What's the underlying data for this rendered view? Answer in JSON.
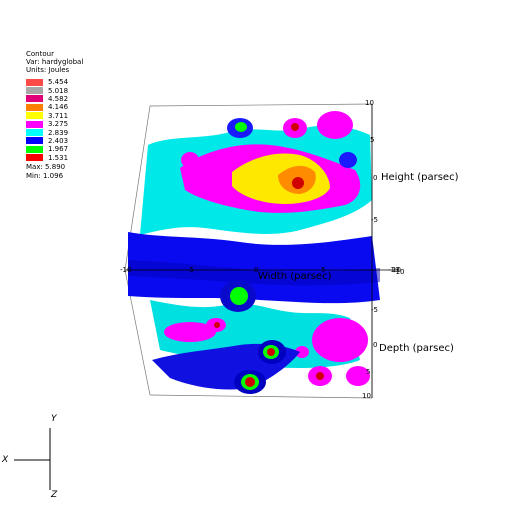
{
  "legend": {
    "title": "Contour",
    "var_label": "Var: hardyglobal",
    "units_label": "Units: Joules",
    "levels": [
      {
        "value": "5.454",
        "color": "#ff4a4a"
      },
      {
        "value": "5.018",
        "color": "#a8a8a8"
      },
      {
        "value": "4.582",
        "color": "#e0007a"
      },
      {
        "value": "4.146",
        "color": "#ff7f00"
      },
      {
        "value": "3.711",
        "color": "#ffff00"
      },
      {
        "value": "3.275",
        "color": "#ff00ff"
      },
      {
        "value": "2.839",
        "color": "#00ffff"
      },
      {
        "value": "2.403",
        "color": "#0000ff"
      },
      {
        "value": "1.967",
        "color": "#00ff00"
      },
      {
        "value": "1.531",
        "color": "#ff0000"
      }
    ],
    "max_label": "Max: 5.890",
    "min_label": "Min: 1.096"
  },
  "axes": {
    "height_label": "Height (parsec)",
    "width_label": "Width (parsec)",
    "depth_label": "Depth (parsec)",
    "height_ticks": [
      "10",
      "5",
      "0",
      "-5",
      "-10"
    ],
    "depth_ticks": [
      "-10",
      "-5",
      "0",
      "5",
      "10"
    ],
    "width_ticks": [
      "-10",
      "-5",
      "0",
      "5",
      "10"
    ]
  },
  "triad": {
    "x": "X",
    "y": "Y",
    "z": "Z"
  }
}
